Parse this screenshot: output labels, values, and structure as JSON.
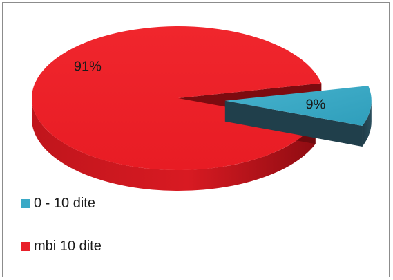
{
  "chart_data": {
    "type": "pie",
    "style": "3d-exploded",
    "categories": [
      "0 - 10 dite",
      "mbi 10 dite"
    ],
    "values": [
      9,
      91
    ],
    "data_labels": [
      "9%",
      "91%"
    ],
    "colors": [
      "#3aa9c6",
      "#e8202a"
    ],
    "title": "",
    "legend_position": "left"
  },
  "legend": {
    "items": [
      {
        "label": "0 - 10 dite",
        "color": "#3aa9c6"
      },
      {
        "label": "mbi 10 dite",
        "color": "#e8202a"
      }
    ]
  }
}
